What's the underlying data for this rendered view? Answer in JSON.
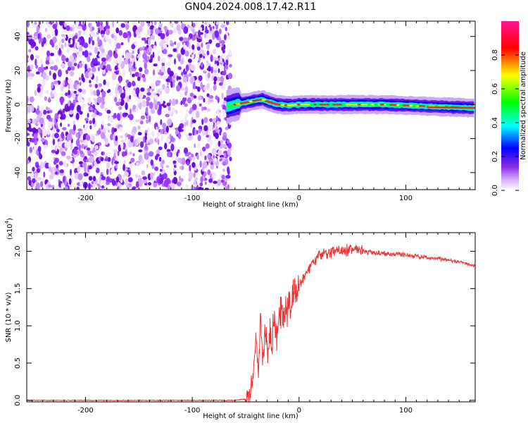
{
  "figure_title": "GN04.2024.008.17.42.R11",
  "chart_data": [
    {
      "type": "heatmap",
      "title": "",
      "xlabel": "Height of straight line (km)",
      "ylabel": "Frequency (Hz)",
      "xlim": [
        -255,
        165
      ],
      "ylim": [
        -50,
        49
      ],
      "xticks": [
        -200,
        -100,
        0,
        100
      ],
      "xtick_labels": [
        "-200",
        "-100",
        "0",
        "100"
      ],
      "yticks": [
        -40,
        -20,
        0,
        20,
        40
      ],
      "ytick_labels": [
        "-40",
        "-20",
        "0",
        "20",
        "40"
      ],
      "noise_region_x": [
        -255,
        -68
      ],
      "signal_center_hz": {
        "x": [
          -68,
          -60,
          -50,
          -40,
          -34,
          -28,
          -20,
          -10,
          0,
          20,
          40,
          60,
          80,
          100,
          120,
          140,
          165
        ],
        "y": [
          -1.5,
          0,
          1.2,
          2.5,
          3,
          1.5,
          0,
          -0.5,
          0,
          0,
          0,
          0,
          0,
          -0.5,
          -1,
          -1.5,
          -2
        ]
      },
      "colorbar": {
        "label": "Normalized spectral amplitude",
        "range": [
          0,
          1
        ],
        "ticks": [
          0.0,
          0.2,
          0.4,
          0.6,
          0.8
        ],
        "tick_labels": [
          "0.0",
          "0.2",
          "0.4",
          "0.6",
          "0.8"
        ],
        "colormap": [
          "#ffffff",
          "#8a2be2",
          "#0000ff",
          "#00ffff",
          "#00ff00",
          "#ffff00",
          "#ff0000",
          "#ff1493"
        ]
      },
      "grid": false
    },
    {
      "type": "line",
      "title": "",
      "xlabel": "Height of straight line (km)",
      "ylabel": "SNR (10 * v/v)",
      "y_scale_label": "(x10",
      "y_scale_exp": "4",
      "y_scale_close": ")",
      "xlim": [
        -255,
        165
      ],
      "ylim": [
        -0.02,
        2.25
      ],
      "xticks": [
        -200,
        -100,
        0,
        100
      ],
      "xtick_labels": [
        "-200",
        "-100",
        "0",
        "100"
      ],
      "yticks": [
        0.0,
        0.5,
        1.0,
        1.5,
        2.0
      ],
      "ytick_labels": [
        "0.0",
        "0.5",
        "1.0",
        "1.5",
        "2.0"
      ],
      "line_color": "#ee3333",
      "series": [
        {
          "x": [
            -255,
            -200,
            -150,
            -100,
            -60,
            -50,
            -45,
            -42,
            -40,
            -38,
            -36,
            -34,
            -32,
            -30,
            -28,
            -25,
            -22,
            -20,
            -18,
            -15,
            -12,
            -10,
            -8,
            -5,
            0,
            5,
            10,
            15,
            20,
            25,
            30,
            40,
            50,
            60,
            70,
            80,
            90,
            100,
            110,
            120,
            130,
            140,
            150,
            160,
            165
          ],
          "y": [
            0.0,
            0.0,
            0.0,
            0.0,
            0.0,
            0.02,
            0.15,
            0.5,
            0.9,
            0.4,
            1.1,
            0.6,
            0.8,
            0.7,
            0.9,
            0.8,
            1.0,
            0.9,
            1.1,
            1.2,
            1.2,
            1.3,
            1.35,
            1.4,
            1.5,
            1.65,
            1.78,
            1.88,
            1.95,
            1.98,
            2.0,
            2.02,
            2.02,
            2.0,
            1.98,
            1.97,
            1.96,
            1.95,
            1.93,
            1.92,
            1.9,
            1.88,
            1.86,
            1.82,
            1.8
          ]
        }
      ],
      "grid": false
    }
  ]
}
